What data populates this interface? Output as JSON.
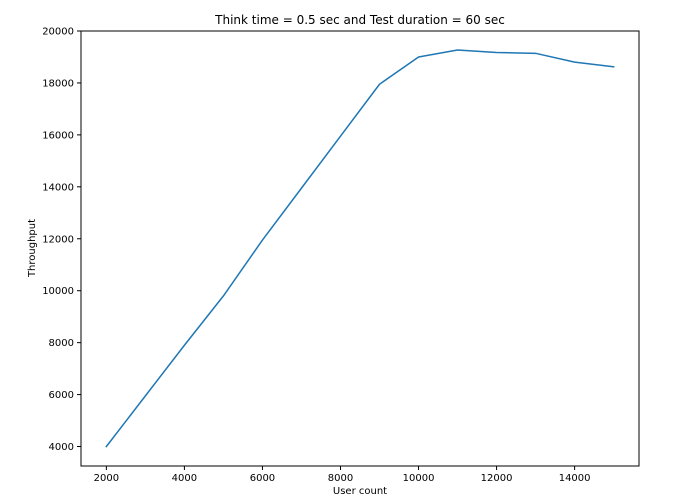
{
  "chart_data": {
    "type": "line",
    "title": "Think time = 0.5 sec and Test duration = 60 sec",
    "xlabel": "User count",
    "ylabel": "Throughput",
    "xlim": [
      1350,
      15650
    ],
    "ylim": [
      3250,
      20000
    ],
    "xticks": [
      2000,
      4000,
      6000,
      8000,
      10000,
      12000,
      14000
    ],
    "yticks": [
      4000,
      6000,
      8000,
      10000,
      12000,
      14000,
      16000,
      18000,
      20000
    ],
    "grid": false,
    "series": [
      {
        "color": "#1f77b4",
        "x": [
          2000,
          3000,
          4000,
          5000,
          6000,
          7000,
          8000,
          9000,
          10000,
          11000,
          12000,
          13000,
          14000,
          15000
        ],
        "y": [
          4000,
          5950,
          7900,
          9800,
          11950,
          13950,
          15950,
          17950,
          19000,
          19270,
          19170,
          19140,
          18800,
          18620
        ]
      }
    ]
  }
}
